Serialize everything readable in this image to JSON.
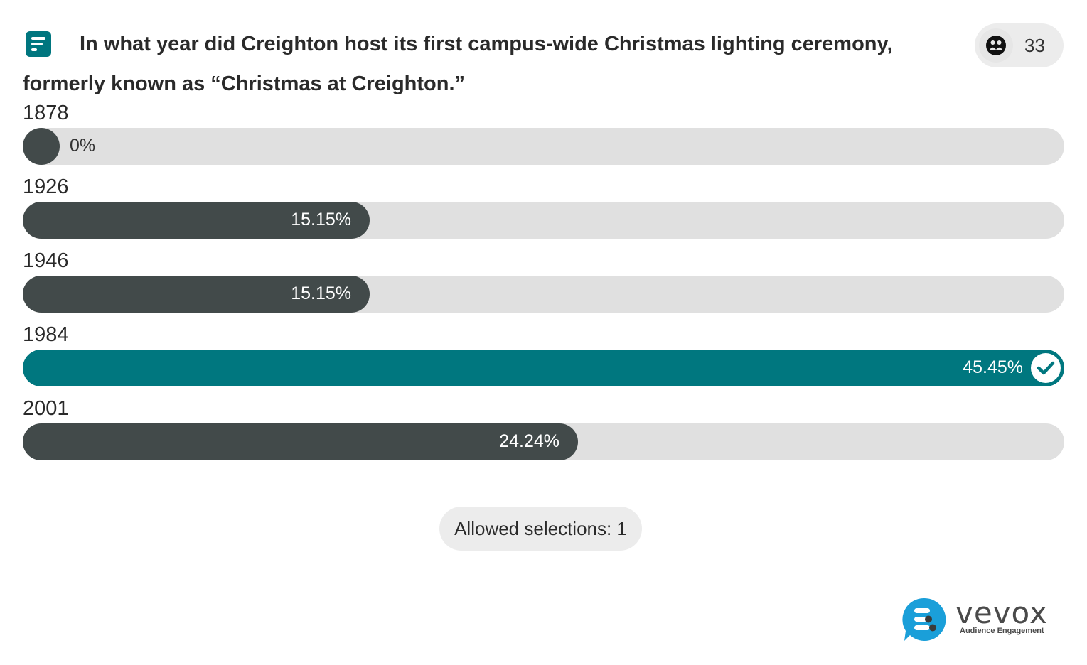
{
  "question": {
    "text": "In what year did Creighton host its first campus-wide Christmas lighting ceremony, formerly known as “Christmas at Creighton.”"
  },
  "participants": {
    "count": "33",
    "icon": "participants-icon"
  },
  "options": [
    {
      "label": "1878",
      "percent": 0,
      "percent_text": "0%",
      "correct": false
    },
    {
      "label": "1926",
      "percent": 15.15,
      "percent_text": "15.15%",
      "correct": false
    },
    {
      "label": "1946",
      "percent": 15.15,
      "percent_text": "15.15%",
      "correct": false
    },
    {
      "label": "1984",
      "percent": 45.45,
      "percent_text": "45.45%",
      "correct": true
    },
    {
      "label": "2001",
      "percent": 24.24,
      "percent_text": "24.24%",
      "correct": false
    }
  ],
  "allowed_selections": "Allowed selections: 1",
  "brand": {
    "name": "vevox",
    "tagline": "Audience Engagement"
  },
  "colors": {
    "accent": "#00777f",
    "bar": "#424a4a",
    "track": "#e0e0e0",
    "logo_blue": "#1a9fd9"
  }
}
